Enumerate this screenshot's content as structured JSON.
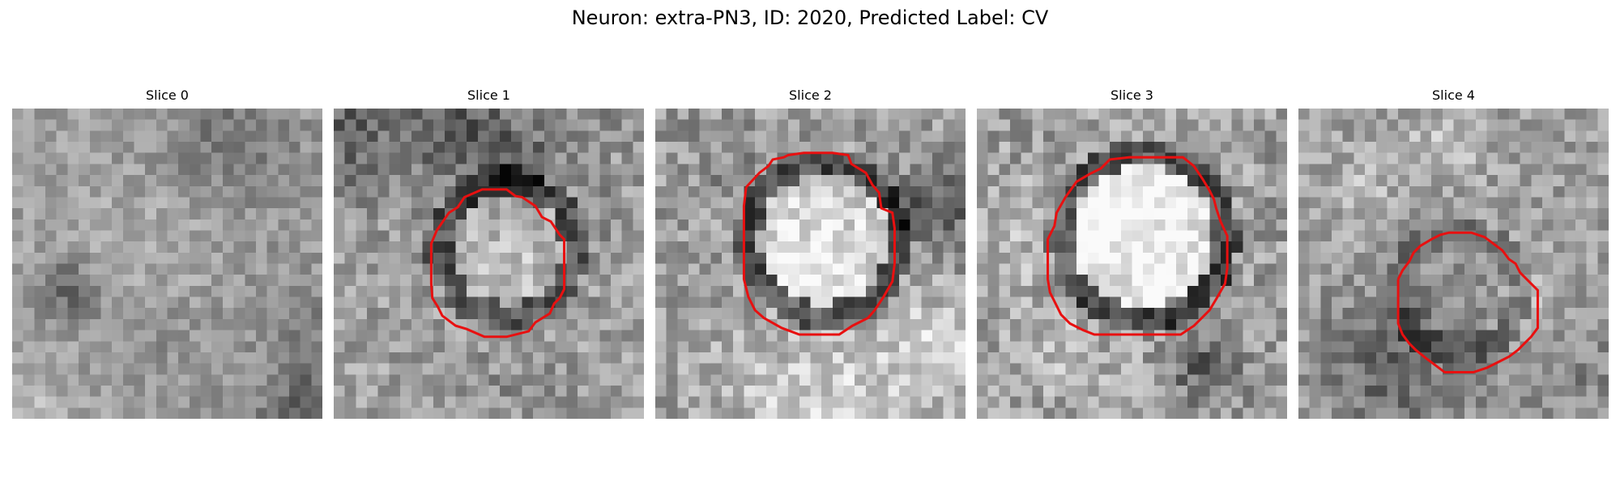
{
  "figure": {
    "title": "Neuron: extra-PN3, ID: 2020, Predicted Label: CV"
  },
  "panels": [
    {
      "title": "Slice 0",
      "seed": 11,
      "contrast": 0.55,
      "has_contour": false,
      "contour_color": "#e81010"
    },
    {
      "title": "Slice 1",
      "seed": 23,
      "contrast": 0.75,
      "has_contour": true,
      "contour_color": "#e81010"
    },
    {
      "title": "Slice 2",
      "seed": 37,
      "contrast": 0.8,
      "has_contour": true,
      "contour_color": "#e81010"
    },
    {
      "title": "Slice 3",
      "seed": 41,
      "contrast": 0.85,
      "has_contour": true,
      "contour_color": "#e81010"
    },
    {
      "title": "Slice 4",
      "seed": 53,
      "contrast": 0.7,
      "has_contour": true,
      "contour_color": "#e81010"
    }
  ],
  "colormap": "gray"
}
